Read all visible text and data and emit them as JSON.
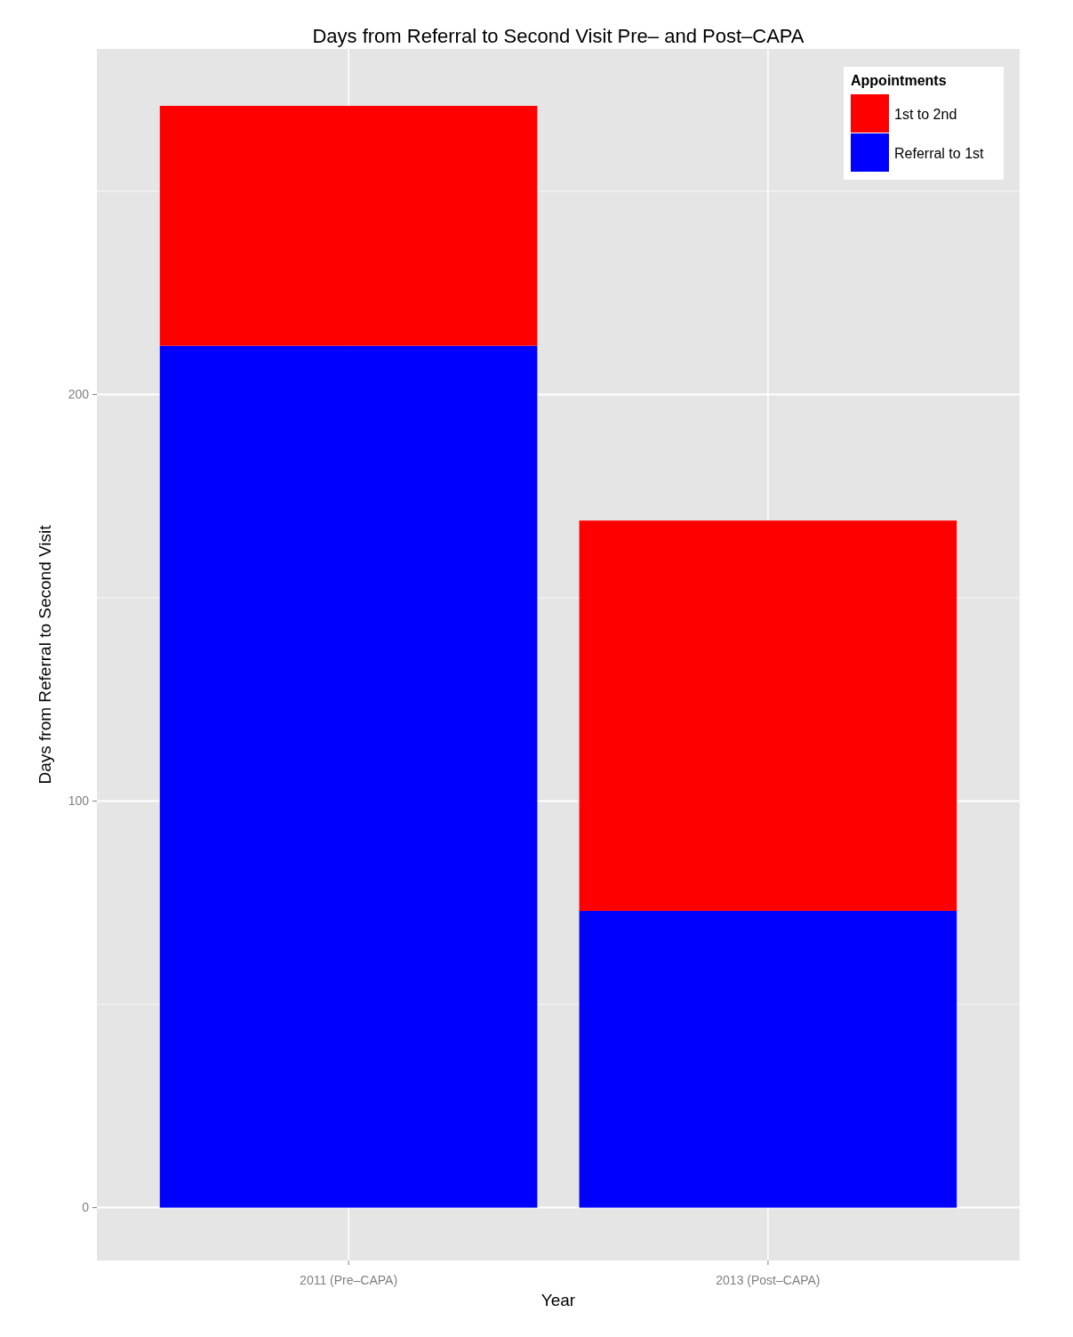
{
  "chart_data": {
    "type": "bar",
    "title": "Days from Referral to Second Visit Pre– and Post–CAPA",
    "xlabel": "Year",
    "ylabel": "Days from Referral to Second Visit",
    "legend_title": "Appointments",
    "categories": [
      "2011 (Pre–CAPA)",
      "2013 (Post–CAPA)"
    ],
    "stacked": true,
    "series": [
      {
        "name": "Referral to 1st",
        "color": "#0000ff",
        "values": [
          212,
          73
        ]
      },
      {
        "name": "1st to 2nd",
        "color": "#ff0000",
        "values": [
          59,
          96
        ]
      }
    ],
    "ylim": [
      -13,
      285
    ],
    "yticks": [
      0,
      {
        "value": 50,
        "label": null
      },
      100,
      {
        "value": 150,
        "label": null
      },
      200,
      {
        "value": 250,
        "label": null
      }
    ],
    "grid": true,
    "legend": "top right"
  }
}
